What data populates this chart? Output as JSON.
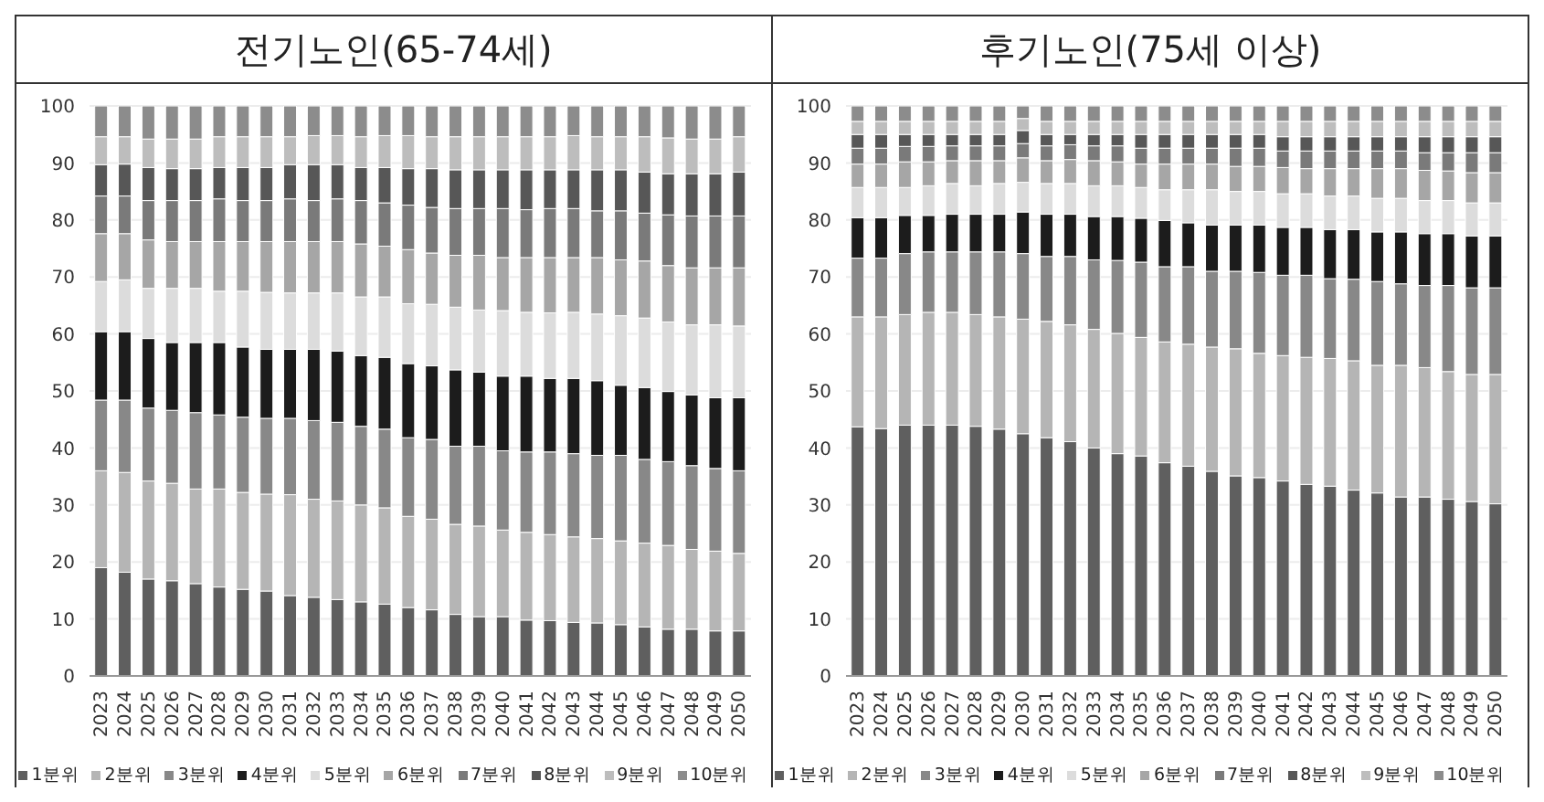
{
  "chart_data": [
    {
      "type": "bar",
      "title": "전기노인(65-74세)",
      "stacked": true,
      "grid": "y",
      "legend": "bottom",
      "categories": [
        "2023",
        "2024",
        "2025",
        "2026",
        "2027",
        "2028",
        "2029",
        "2030",
        "2031",
        "2032",
        "2033",
        "2034",
        "2035",
        "2036",
        "2037",
        "2038",
        "2039",
        "2040",
        "2041",
        "2042",
        "2043",
        "2044",
        "2045",
        "2046",
        "2047",
        "2048",
        "2049",
        "2050"
      ],
      "ylim": [
        0,
        100
      ],
      "yticks": [
        0,
        10,
        20,
        30,
        40,
        50,
        60,
        70,
        80,
        90,
        100
      ],
      "series": [
        {
          "name": "1분위",
          "color": "#5f5f5f",
          "values": [
            19,
            18.2,
            17,
            16.7,
            16.2,
            15.6,
            15.2,
            14.9,
            14.1,
            13.8,
            13.4,
            13,
            12.6,
            12,
            11.6,
            10.8,
            10.4,
            10.4,
            9.8,
            9.7,
            9.4,
            9.3,
            9,
            8.6,
            8.2,
            8.2,
            7.9,
            7.9
          ]
        },
        {
          "name": "2분위",
          "color": "#b5b5b5",
          "values": [
            17,
            17.5,
            17.2,
            17.1,
            16.6,
            17.2,
            17,
            17,
            17.7,
            17.2,
            17.3,
            17,
            16.9,
            16,
            15.9,
            15.8,
            15.9,
            15.2,
            15.4,
            15.1,
            15,
            14.8,
            14.7,
            14.7,
            14.7,
            14,
            14,
            13.6
          ]
        },
        {
          "name": "3분위",
          "color": "#888888",
          "values": [
            12.4,
            12.7,
            12.8,
            12.8,
            13.4,
            13,
            13.2,
            13.3,
            13.4,
            13.8,
            13.8,
            13.8,
            13.8,
            13.8,
            14,
            13.7,
            14,
            13.9,
            14.1,
            14.5,
            14.6,
            14.6,
            15,
            14.7,
            14.7,
            14.7,
            14.5,
            14.5
          ]
        },
        {
          "name": "4분위",
          "color": "#1c1c1c",
          "values": [
            12,
            12,
            12.2,
            11.9,
            12.3,
            12.7,
            12.3,
            12.1,
            12.1,
            12.5,
            12.5,
            12.4,
            12.6,
            13,
            12.9,
            13.4,
            13,
            13.1,
            13.3,
            12.9,
            13.2,
            13.1,
            12.3,
            12.6,
            12.3,
            12.4,
            12.4,
            12.8
          ]
        },
        {
          "name": "5분위",
          "color": "#dcdcdc",
          "values": [
            8.8,
            9.1,
            8.8,
            9.5,
            9.5,
            9,
            9.8,
            10,
            9.9,
            9.9,
            10.2,
            10.3,
            10.6,
            10.5,
            10.8,
            11,
            10.9,
            11.5,
            11.2,
            11.5,
            11.6,
            11.7,
            12.2,
            12.2,
            12.2,
            12.3,
            12.8,
            12.6
          ]
        },
        {
          "name": "6분위",
          "color": "#a6a6a6",
          "values": [
            8.4,
            8.1,
            8.5,
            8.2,
            8.2,
            8.7,
            8.7,
            8.9,
            9,
            9,
            9,
            9.3,
            8.9,
            9.5,
            9,
            9.1,
            9.6,
            9.3,
            9.6,
            9.7,
            9.6,
            9.9,
            9.8,
            10,
            9.9,
            10,
            10,
            10.2
          ]
        },
        {
          "name": "7분위",
          "color": "#7a7a7a",
          "values": [
            6.6,
            6.6,
            6.9,
            7.2,
            7.2,
            7.5,
            7.2,
            7.2,
            7.5,
            7.2,
            7.5,
            7.6,
            7.6,
            7.8,
            8,
            8.2,
            8.2,
            8.6,
            8.4,
            8.6,
            8.6,
            8.2,
            8.6,
            8.4,
            8.9,
            9.1,
            9.1,
            9.1
          ]
        },
        {
          "name": "8분위",
          "color": "#575757",
          "values": [
            5.5,
            5.6,
            5.8,
            5.6,
            5.6,
            5.5,
            5.8,
            5.8,
            6,
            6.3,
            6,
            5.8,
            6.2,
            6.4,
            6.8,
            6.8,
            6.8,
            6.8,
            7,
            6.8,
            6.8,
            7.2,
            7.2,
            7.2,
            7.2,
            7.4,
            7.4,
            7.7
          ]
        },
        {
          "name": "9분위",
          "color": "#bdbdbd",
          "values": [
            4.9,
            4.8,
            5,
            5.2,
            5.2,
            5.4,
            5.4,
            5.4,
            4.9,
            5.1,
            5.1,
            5.4,
            5.6,
            5.8,
            5.6,
            5.8,
            5.8,
            5.8,
            5.8,
            5.8,
            6,
            5.8,
            5.8,
            6.2,
            6.3,
            6.1,
            6.1,
            6.2
          ]
        },
        {
          "name": "10분위",
          "color": "#8c8c8c",
          "values": [
            5.4,
            5.4,
            5.8,
            5.8,
            5.8,
            5.4,
            5.4,
            5.4,
            5.4,
            5.2,
            5.2,
            5.4,
            5.2,
            5.2,
            5.4,
            5.4,
            5.4,
            5.4,
            5.4,
            5.4,
            5.2,
            5.4,
            5.4,
            5.4,
            5.6,
            5.8,
            5.8,
            5.4
          ]
        }
      ]
    },
    {
      "type": "bar",
      "title": "후기노인(75세 이상)",
      "stacked": true,
      "grid": "y",
      "legend": "bottom",
      "categories": [
        "2023",
        "2024",
        "2025",
        "2026",
        "2027",
        "2028",
        "2029",
        "2030",
        "2031",
        "2032",
        "2033",
        "2034",
        "2035",
        "2036",
        "2037",
        "2038",
        "2039",
        "2040",
        "2041",
        "2042",
        "2043",
        "2044",
        "2045",
        "2046",
        "2047",
        "2048",
        "2049",
        "2050"
      ],
      "ylim": [
        0,
        100
      ],
      "yticks": [
        0,
        10,
        20,
        30,
        40,
        50,
        60,
        70,
        80,
        90,
        100
      ],
      "series": [
        {
          "name": "1분위",
          "color": "#5f5f5f",
          "values": [
            43.7,
            43.4,
            44,
            44,
            44,
            43.8,
            43.3,
            42.5,
            41.8,
            41.1,
            40,
            39,
            38.6,
            37.4,
            36.8,
            35.9,
            35.1,
            34.8,
            34.2,
            33.6,
            33.3,
            32.6,
            32.1,
            31.4,
            31.4,
            31,
            30.6,
            30.2
          ]
        },
        {
          "name": "2분위",
          "color": "#b5b5b5",
          "values": [
            19.3,
            19.6,
            19.4,
            19.8,
            19.8,
            19.6,
            19.7,
            20.1,
            20.4,
            20.5,
            20.8,
            21.1,
            20.8,
            21.2,
            21.4,
            21.8,
            22.3,
            21.8,
            22,
            22.3,
            22.4,
            22.7,
            22.4,
            23.1,
            22.7,
            22.4,
            22.3,
            22.7
          ]
        },
        {
          "name": "3분위",
          "color": "#888888",
          "values": [
            10.3,
            10.3,
            10.7,
            10.6,
            10.6,
            11,
            11.4,
            11.5,
            11.4,
            12,
            12.2,
            12.8,
            13.2,
            13.2,
            13.6,
            13.3,
            13.6,
            14.2,
            14.1,
            14.4,
            14,
            14.3,
            14.7,
            14.3,
            14.4,
            15.1,
            15.2,
            15.2
          ]
        },
        {
          "name": "4분위",
          "color": "#1c1c1c",
          "values": [
            7.1,
            7.1,
            6.7,
            6.4,
            6.6,
            6.6,
            6.6,
            7.3,
            7.4,
            7.4,
            7.6,
            7.7,
            7.7,
            8.1,
            7.7,
            8.1,
            8.1,
            8.3,
            8.4,
            8.4,
            8.6,
            8.7,
            8.7,
            9.1,
            9.1,
            9.1,
            9.1,
            9.1
          ]
        },
        {
          "name": "5분위",
          "color": "#dcdcdc",
          "values": [
            5.3,
            5.3,
            4.9,
            5.2,
            5.4,
            5,
            5.4,
            5.2,
            5.4,
            5.4,
            5.4,
            5.4,
            5.4,
            5.4,
            5.8,
            6.2,
            5.9,
            5.9,
            5.9,
            5.9,
            5.9,
            5.9,
            5.9,
            5.9,
            5.8,
            5.8,
            5.8,
            5.8
          ]
        },
        {
          "name": "6분위",
          "color": "#a6a6a6",
          "values": [
            4.1,
            4.1,
            4.5,
            4.2,
            4,
            4.4,
            4,
            4.3,
            4,
            4.2,
            4.4,
            4.2,
            4.1,
            4.5,
            4.5,
            4.5,
            4.4,
            4.4,
            4.6,
            4.4,
            4.8,
            4.8,
            5.2,
            5.2,
            5.3,
            5.2,
            5.3,
            5.3
          ]
        },
        {
          "name": "7분위",
          "color": "#7a7a7a",
          "values": [
            2.8,
            2.8,
            2.7,
            2.7,
            2.6,
            2.6,
            2.6,
            2.5,
            2.6,
            2.6,
            2.6,
            2.8,
            2.8,
            2.8,
            2.8,
            2.8,
            3.2,
            3.2,
            2.9,
            3.1,
            3.1,
            3.1,
            3.1,
            3.1,
            3.1,
            3.2,
            3.5,
            3.5
          ]
        },
        {
          "name": "8분위",
          "color": "#575757",
          "values": [
            2.4,
            2.4,
            2.1,
            2.1,
            2,
            2,
            2,
            2.3,
            2,
            1.8,
            2,
            2,
            2.4,
            2.4,
            2.4,
            2.4,
            2.4,
            2.4,
            2.5,
            2.5,
            2.5,
            2.5,
            2.5,
            2.5,
            2.8,
            2.8,
            2.8,
            2.8
          ]
        },
        {
          "name": "9분위",
          "color": "#bdbdbd",
          "values": [
            2.3,
            2.3,
            2.3,
            2.3,
            2.3,
            2.3,
            2.3,
            2.1,
            2.3,
            2.3,
            2.3,
            2.3,
            2.3,
            2.3,
            2.3,
            2.3,
            2.3,
            2.3,
            2.7,
            2.7,
            2.7,
            2.7,
            2.7,
            2.7,
            2.7,
            2.7,
            2.7,
            2.7
          ]
        },
        {
          "name": "10분위",
          "color": "#8c8c8c",
          "values": [
            2.7,
            2.7,
            2.7,
            2.7,
            2.7,
            2.7,
            2.7,
            2.2,
            2.7,
            2.7,
            2.7,
            2.7,
            2.7,
            2.7,
            2.7,
            2.7,
            2.7,
            2.7,
            2.7,
            2.7,
            2.7,
            2.7,
            2.7,
            2.7,
            2.7,
            2.7,
            2.7,
            2.7
          ]
        }
      ]
    }
  ]
}
